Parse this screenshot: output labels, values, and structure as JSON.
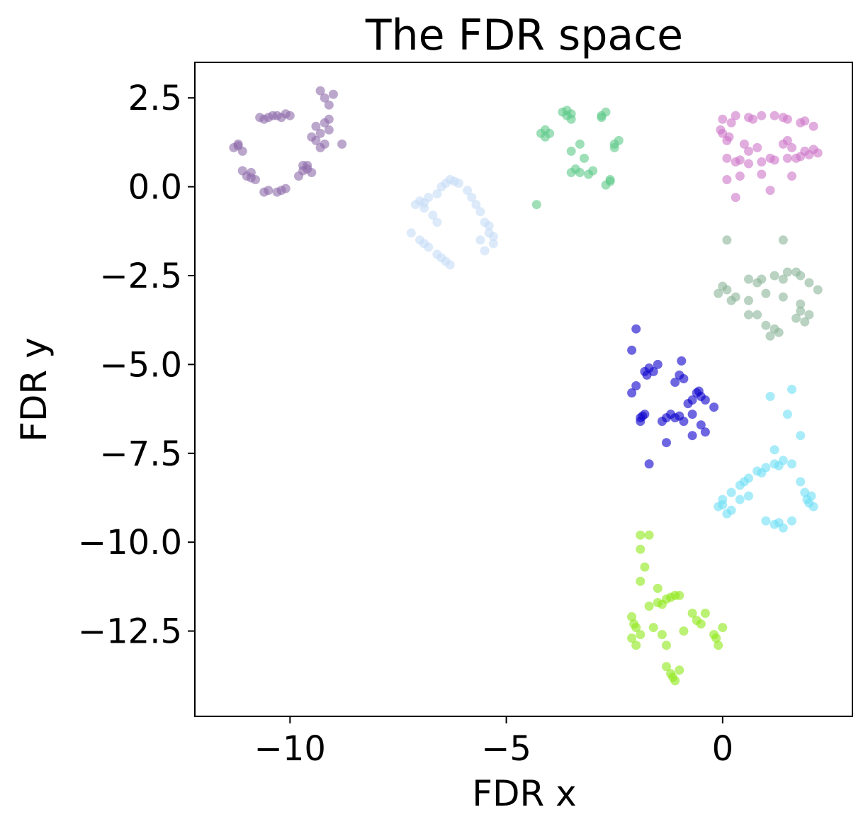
{
  "chart_data": {
    "type": "scatter",
    "title": "The FDR space",
    "xlabel": "FDR x",
    "ylabel": "FDR y",
    "xlim": [
      -12.2,
      3.0
    ],
    "ylim": [
      -14.9,
      3.5
    ],
    "xticks": [
      {
        "value": -10,
        "label": "−10"
      },
      {
        "value": -5,
        "label": "−5"
      },
      {
        "value": 0,
        "label": "0"
      }
    ],
    "yticks": [
      {
        "value": 2.5,
        "label": "2.5"
      },
      {
        "value": 0.0,
        "label": "0.0"
      },
      {
        "value": -2.5,
        "label": "−2.5"
      },
      {
        "value": -5.0,
        "label": "−5.0"
      },
      {
        "value": -7.5,
        "label": "−7.5"
      },
      {
        "value": -10.0,
        "label": "−10.0"
      },
      {
        "value": -12.5,
        "label": "−12.5"
      }
    ],
    "grid": false,
    "legend": null,
    "series": [
      {
        "color": "#8e6aaa",
        "points": [
          [
            -10.7,
            1.95
          ],
          [
            -10.5,
            1.95
          ],
          [
            -10.3,
            2.0
          ],
          [
            -10.1,
            2.05
          ],
          [
            -10.0,
            2.0
          ],
          [
            -10.6,
            1.9
          ],
          [
            -10.2,
            1.95
          ],
          [
            -10.4,
            2.0
          ],
          [
            -9.4,
            1.7
          ],
          [
            -9.3,
            1.5
          ],
          [
            -9.2,
            1.8
          ],
          [
            -9.4,
            1.3
          ],
          [
            -9.1,
            1.6
          ],
          [
            -9.3,
            1.1
          ],
          [
            -9.5,
            1.4
          ],
          [
            -9.2,
            1.2
          ],
          [
            -9.2,
            2.5
          ],
          [
            -9.3,
            2.7
          ],
          [
            -9.1,
            2.3
          ],
          [
            -9.0,
            2.6
          ],
          [
            -8.8,
            1.2
          ],
          [
            -9.1,
            1.9
          ],
          [
            -11.3,
            1.1
          ],
          [
            -11.2,
            1.2
          ],
          [
            -11.1,
            1.0
          ],
          [
            -11.2,
            1.15
          ],
          [
            -10.9,
            0.4
          ],
          [
            -11.0,
            0.3
          ],
          [
            -10.8,
            0.2
          ],
          [
            -11.1,
            0.45
          ],
          [
            -10.9,
            0.25
          ],
          [
            -10.6,
            -0.15
          ],
          [
            -10.5,
            -0.1
          ],
          [
            -10.2,
            -0.1
          ],
          [
            -10.1,
            -0.05
          ],
          [
            -10.3,
            -0.15
          ],
          [
            -9.7,
            0.6
          ],
          [
            -9.6,
            0.5
          ],
          [
            -9.5,
            0.4
          ],
          [
            -9.7,
            0.45
          ],
          [
            -9.8,
            0.3
          ],
          [
            -9.6,
            0.6
          ]
        ]
      },
      {
        "color": "#c6dcf7",
        "points": [
          [
            -6.5,
            0.0
          ],
          [
            -6.3,
            0.2
          ],
          [
            -6.1,
            0.1
          ],
          [
            -5.9,
            -0.1
          ],
          [
            -5.8,
            -0.3
          ],
          [
            -6.6,
            -0.2
          ],
          [
            -6.4,
            0.1
          ],
          [
            -6.2,
            0.15
          ],
          [
            -7.0,
            -0.4
          ],
          [
            -6.9,
            -0.6
          ],
          [
            -6.8,
            -0.3
          ],
          [
            -7.1,
            -0.5
          ],
          [
            -6.7,
            -0.8
          ],
          [
            -6.6,
            -1.0
          ],
          [
            -6.9,
            -0.45
          ],
          [
            -7.2,
            -1.3
          ],
          [
            -7.0,
            -1.5
          ],
          [
            -6.8,
            -1.7
          ],
          [
            -6.6,
            -1.9
          ],
          [
            -6.4,
            -2.1
          ],
          [
            -6.3,
            -2.2
          ],
          [
            -6.9,
            -1.6
          ],
          [
            -6.5,
            -2.0
          ],
          [
            -5.5,
            -1.0
          ],
          [
            -5.4,
            -1.3
          ],
          [
            -5.3,
            -1.6
          ],
          [
            -5.5,
            -1.8
          ],
          [
            -5.4,
            -1.1
          ],
          [
            -5.3,
            -1.4
          ],
          [
            -5.6,
            -1.5
          ],
          [
            -5.6,
            -0.7
          ],
          [
            -5.7,
            -0.5
          ]
        ]
      },
      {
        "color": "#5ec988",
        "points": [
          [
            -3.7,
            2.1
          ],
          [
            -3.6,
            2.0
          ],
          [
            -3.5,
            1.9
          ],
          [
            -3.6,
            2.15
          ],
          [
            -3.5,
            2.05
          ],
          [
            -2.8,
            2.0
          ],
          [
            -2.7,
            2.1
          ],
          [
            -2.8,
            1.95
          ],
          [
            -4.2,
            1.5
          ],
          [
            -4.1,
            1.4
          ],
          [
            -4.0,
            1.5
          ],
          [
            -4.1,
            1.6
          ],
          [
            -3.3,
            1.2
          ],
          [
            -3.5,
            1.0
          ],
          [
            -3.2,
            0.8
          ],
          [
            -2.5,
            1.2
          ],
          [
            -2.4,
            1.3
          ],
          [
            -2.5,
            1.1
          ],
          [
            -3.5,
            0.4
          ],
          [
            -3.3,
            0.4
          ],
          [
            -3.1,
            0.35
          ],
          [
            -3.0,
            0.45
          ],
          [
            -3.4,
            0.5
          ],
          [
            -2.6,
            0.15
          ],
          [
            -2.7,
            0.05
          ],
          [
            -2.6,
            0.2
          ],
          [
            -4.3,
            -0.5
          ]
        ]
      },
      {
        "color": "#cd75c8",
        "points": [
          [
            0.0,
            1.9
          ],
          [
            0.3,
            2.0
          ],
          [
            0.6,
            1.95
          ],
          [
            0.9,
            2.0
          ],
          [
            1.2,
            2.0
          ],
          [
            1.5,
            1.9
          ],
          [
            1.8,
            1.8
          ],
          [
            2.1,
            1.7
          ],
          [
            0.2,
            1.8
          ],
          [
            0.7,
            1.9
          ],
          [
            1.4,
            1.95
          ],
          [
            1.9,
            1.85
          ],
          [
            0.0,
            1.5
          ],
          [
            0.1,
            1.3
          ],
          [
            -0.05,
            1.6
          ],
          [
            0.15,
            1.4
          ],
          [
            0.1,
            0.8
          ],
          [
            0.3,
            0.7
          ],
          [
            0.6,
            0.65
          ],
          [
            0.9,
            0.7
          ],
          [
            1.2,
            0.75
          ],
          [
            1.5,
            0.8
          ],
          [
            1.8,
            0.85
          ],
          [
            2.0,
            0.9
          ],
          [
            0.4,
            0.75
          ],
          [
            1.1,
            0.8
          ],
          [
            1.7,
            0.8
          ],
          [
            1.4,
            1.2
          ],
          [
            1.6,
            1.1
          ],
          [
            1.9,
            1.0
          ],
          [
            2.1,
            1.05
          ],
          [
            1.5,
            1.3
          ],
          [
            0.5,
            1.2
          ],
          [
            0.6,
            1.0
          ],
          [
            0.8,
            1.1
          ],
          [
            0.4,
            0.3
          ],
          [
            0.9,
            0.35
          ],
          [
            1.6,
            0.3
          ],
          [
            0.3,
            -0.3
          ],
          [
            1.1,
            -0.1
          ],
          [
            2.2,
            0.95
          ],
          [
            0.1,
            0.2
          ]
        ]
      },
      {
        "color": "#8bb497",
        "points": [
          [
            0.1,
            -2.9
          ],
          [
            -0.1,
            -3.0
          ],
          [
            0.2,
            -3.2
          ],
          [
            0.0,
            -2.8
          ],
          [
            0.3,
            -3.1
          ],
          [
            0.6,
            -2.6
          ],
          [
            0.9,
            -2.6
          ],
          [
            1.2,
            -2.5
          ],
          [
            1.5,
            -2.4
          ],
          [
            1.8,
            -2.5
          ],
          [
            2.0,
            -2.7
          ],
          [
            2.2,
            -2.9
          ],
          [
            0.8,
            -2.7
          ],
          [
            1.4,
            -2.6
          ],
          [
            1.7,
            -2.4
          ],
          [
            1.0,
            -3.0
          ],
          [
            1.4,
            -3.1
          ],
          [
            1.8,
            -3.3
          ],
          [
            0.6,
            -3.2
          ],
          [
            0.6,
            -3.6
          ],
          [
            0.8,
            -3.6
          ],
          [
            1.0,
            -3.9
          ],
          [
            1.2,
            -4.0
          ],
          [
            1.3,
            -4.1
          ],
          [
            1.1,
            -4.2
          ],
          [
            1.7,
            -3.7
          ],
          [
            1.9,
            -3.8
          ],
          [
            2.0,
            -3.6
          ],
          [
            1.8,
            -3.5
          ],
          [
            1.4,
            -1.5
          ],
          [
            0.1,
            -1.5
          ]
        ]
      },
      {
        "color": "#0b00cc",
        "points": [
          [
            -1.8,
            -5.2
          ],
          [
            -1.7,
            -5.1
          ],
          [
            -1.6,
            -5.2
          ],
          [
            -1.75,
            -5.3
          ],
          [
            -1.0,
            -5.3
          ],
          [
            -0.9,
            -5.4
          ],
          [
            -1.1,
            -5.5
          ],
          [
            -0.95,
            -4.9
          ],
          [
            -0.8,
            -6.1
          ],
          [
            -0.7,
            -6.0
          ],
          [
            -0.6,
            -5.8
          ],
          [
            -0.5,
            -5.9
          ],
          [
            -0.4,
            -6.0
          ],
          [
            -0.55,
            -5.75
          ],
          [
            -1.9,
            -6.5
          ],
          [
            -1.8,
            -6.4
          ],
          [
            -1.9,
            -6.6
          ],
          [
            -1.85,
            -6.45
          ],
          [
            -1.4,
            -6.6
          ],
          [
            -1.3,
            -6.5
          ],
          [
            -1.1,
            -6.5
          ],
          [
            -0.9,
            -6.6
          ],
          [
            -1.2,
            -6.4
          ],
          [
            -1.0,
            -6.45
          ],
          [
            -0.7,
            -6.4
          ],
          [
            -0.4,
            -6.9
          ],
          [
            -0.2,
            -6.2
          ],
          [
            -0.5,
            -6.7
          ],
          [
            -2.1,
            -4.6
          ],
          [
            -2.0,
            -4.0
          ],
          [
            -2.0,
            -5.6
          ],
          [
            -2.1,
            -5.8
          ],
          [
            -1.3,
            -7.2
          ],
          [
            -1.7,
            -7.8
          ],
          [
            -0.7,
            -7.0
          ],
          [
            -1.5,
            -5.0
          ]
        ]
      },
      {
        "color": "#6fe0f5",
        "points": [
          [
            0.2,
            -8.6
          ],
          [
            0.4,
            -8.4
          ],
          [
            0.6,
            -8.2
          ],
          [
            0.8,
            -8.0
          ],
          [
            1.0,
            -7.9
          ],
          [
            1.2,
            -7.8
          ],
          [
            1.4,
            -7.7
          ],
          [
            1.6,
            -7.8
          ],
          [
            0.5,
            -8.3
          ],
          [
            0.9,
            -8.05
          ],
          [
            1.3,
            -7.85
          ],
          [
            0.0,
            -8.8
          ],
          [
            -0.1,
            -9.0
          ],
          [
            0.1,
            -9.2
          ],
          [
            0.2,
            -9.1
          ],
          [
            0.0,
            -8.95
          ],
          [
            0.4,
            -8.8
          ],
          [
            0.6,
            -8.7
          ],
          [
            1.8,
            -8.3
          ],
          [
            1.9,
            -8.6
          ],
          [
            2.0,
            -8.9
          ],
          [
            2.1,
            -9.0
          ],
          [
            1.95,
            -8.8
          ],
          [
            2.05,
            -8.7
          ],
          [
            1.0,
            -9.4
          ],
          [
            1.2,
            -9.5
          ],
          [
            1.4,
            -9.6
          ],
          [
            1.6,
            -9.4
          ],
          [
            1.3,
            -9.45
          ],
          [
            1.5,
            -6.4
          ],
          [
            1.8,
            -7.0
          ],
          [
            1.2,
            -7.4
          ],
          [
            1.6,
            -5.7
          ],
          [
            1.1,
            -5.9
          ]
        ]
      },
      {
        "color": "#8ee818",
        "points": [
          [
            -2.1,
            -12.1
          ],
          [
            -2.0,
            -12.4
          ],
          [
            -2.1,
            -12.7
          ],
          [
            -2.0,
            -12.9
          ],
          [
            -1.9,
            -12.6
          ],
          [
            -2.05,
            -12.3
          ],
          [
            -1.7,
            -11.8
          ],
          [
            -1.5,
            -11.7
          ],
          [
            -1.3,
            -11.6
          ],
          [
            -1.1,
            -11.5
          ],
          [
            -1.0,
            -11.5
          ],
          [
            -1.4,
            -11.75
          ],
          [
            -1.2,
            -11.55
          ],
          [
            -0.7,
            -12.0
          ],
          [
            -0.6,
            -12.2
          ],
          [
            -0.4,
            -12.0
          ],
          [
            -0.5,
            -12.3
          ],
          [
            -0.2,
            -12.6
          ],
          [
            -0.1,
            -12.9
          ],
          [
            0.0,
            -12.4
          ],
          [
            -0.15,
            -12.7
          ],
          [
            -1.3,
            -13.5
          ],
          [
            -1.2,
            -13.7
          ],
          [
            -1.1,
            -13.9
          ],
          [
            -1.0,
            -13.6
          ],
          [
            -1.15,
            -13.8
          ],
          [
            -1.6,
            -12.4
          ],
          [
            -1.4,
            -12.6
          ],
          [
            -0.9,
            -12.5
          ],
          [
            -1.9,
            -9.8
          ],
          [
            -1.7,
            -9.8
          ],
          [
            -1.9,
            -10.2
          ],
          [
            -1.8,
            -10.7
          ],
          [
            -1.9,
            -11.1
          ],
          [
            -1.5,
            -11.3
          ],
          [
            -1.3,
            -12.9
          ]
        ]
      }
    ]
  }
}
